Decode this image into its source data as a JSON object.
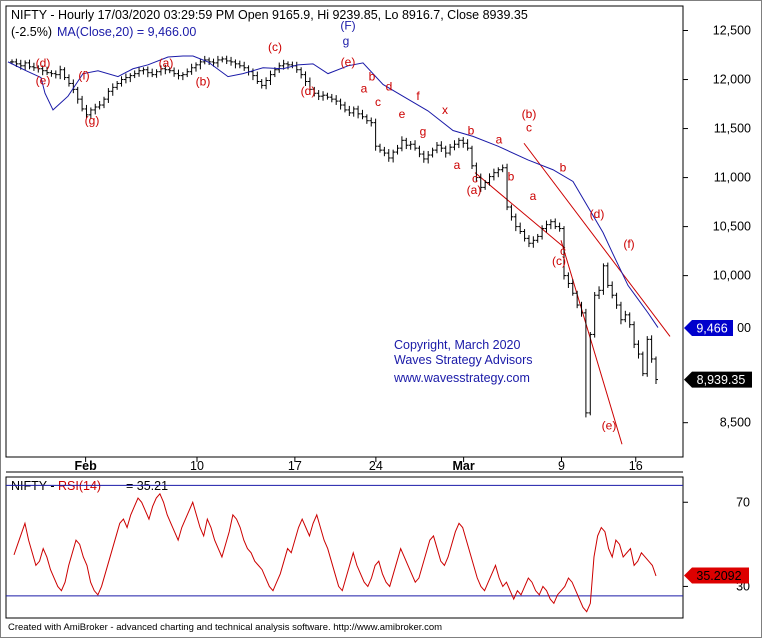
{
  "header": {
    "main_title": "NIFTY - Hourly 17/03/2020 03:29:59 PM Open 9165.9, Hi 9239.85, Lo 8916.7, Close 8939.35",
    "change_text": "(-2.5%)",
    "ma_text": "MA(Close,20) = 9,466.00"
  },
  "copyright": {
    "line1": "Copyright, March 2020",
    "line2": "Waves Strategy Advisors",
    "line3": "www.wavesstrategy.com"
  },
  "footer": {
    "text": "Created with AmiBroker - advanced charting and technical analysis software. http://www.amibroker.com"
  },
  "colors": {
    "price_bars": "#000000",
    "ma_line": "#1a1aa8",
    "wave_labels": "#cc0000",
    "wave_labels_primary": "#1a1aa8",
    "trend_lines": "#cc0000",
    "rsi_line": "#cc0000",
    "rsi_levels": "#1a1aa8",
    "ma_tag": "#0000cc",
    "close_tag": "#000000",
    "rsi_tag": "#dd0000"
  },
  "chart_data": [
    {
      "type": "ohlc",
      "title": "NIFTY - Hourly",
      "ylim": [
        8150,
        12750
      ],
      "y_ticks": [
        8500,
        10000,
        10500,
        11000,
        11500,
        12000,
        12500
      ],
      "y_tick_labels": [
        "8,500",
        "10,000",
        "10,500",
        "11,000",
        "11,500",
        "12,000",
        "12,500"
      ],
      "x_tick_labels": [
        "Feb",
        "10",
        "17",
        "24",
        "Mar",
        "9",
        "16"
      ],
      "last_close": 8939.35,
      "last_close_label": "8,939.35",
      "ma_period": 20,
      "ma_value": 9466.0,
      "ma_value_label": "9,466",
      "series": [
        {
          "name": "NIFTY",
          "close": [
            12180,
            12160,
            12140,
            12170,
            12130,
            12120,
            12110,
            12090,
            12070,
            12060,
            12050,
            12100,
            12020,
            11960,
            11900,
            11800,
            11700,
            11640,
            11690,
            11720,
            11740,
            11800,
            11880,
            11920,
            11960,
            12000,
            12020,
            12040,
            12060,
            12090,
            12100,
            12070,
            12050,
            12080,
            12110,
            12100,
            12090,
            12060,
            12040,
            12050,
            12080,
            12120,
            12150,
            12180,
            12200,
            12180,
            12170,
            12200,
            12210,
            12190,
            12180,
            12160,
            12140,
            12120,
            12080,
            12040,
            11980,
            11940,
            11990,
            12050,
            12100,
            12140,
            12160,
            12150,
            12140,
            12100,
            12050,
            11980,
            11900,
            11860,
            11830,
            11840,
            11820,
            11800,
            11780,
            11740,
            11690,
            11660,
            11700,
            11650,
            11620,
            11580,
            11560,
            11320,
            11280,
            11250,
            11200,
            11260,
            11300,
            11380,
            11330,
            11340,
            11300,
            11240,
            11190,
            11230,
            11280,
            11330,
            11300,
            11250,
            11310,
            11340,
            11380,
            11350,
            11300,
            11120,
            11000,
            10900,
            10950,
            11010,
            11050,
            11080,
            11100,
            10700,
            10600,
            10500,
            10450,
            10380,
            10330,
            10360,
            10400,
            10480,
            10520,
            10550,
            10500,
            10480,
            10000,
            9920,
            9820,
            9700,
            9620,
            8600,
            9400,
            9800,
            9850,
            10100,
            9900,
            9800,
            9700,
            9550,
            9600,
            9500,
            9300,
            9200,
            9000,
            9350,
            9150,
            8940
          ]
        },
        {
          "name": "MA(Close,20)",
          "points": [
            [
              0,
              12180
            ],
            [
              18,
              12090
            ],
            [
              33,
              12020
            ],
            [
              37,
              11860
            ],
            [
              45,
              11690
            ],
            [
              60,
              11830
            ],
            [
              75,
              12060
            ],
            [
              90,
              12090
            ],
            [
              110,
              12030
            ],
            [
              125,
              12110
            ],
            [
              140,
              12150
            ],
            [
              160,
              12230
            ],
            [
              175,
              12240
            ],
            [
              185,
              12240
            ],
            [
              200,
              12180
            ],
            [
              220,
              12030
            ],
            [
              235,
              12060
            ],
            [
              255,
              12120
            ],
            [
              275,
              12110
            ],
            [
              290,
              12150
            ],
            [
              305,
              12160
            ],
            [
              320,
              12060
            ],
            [
              340,
              12140
            ],
            [
              355,
              12170
            ],
            [
              375,
              11950
            ],
            [
              400,
              11800
            ],
            [
              420,
              11680
            ],
            [
              445,
              11480
            ],
            [
              465,
              11420
            ],
            [
              490,
              11320
            ],
            [
              520,
              11180
            ],
            [
              545,
              11080
            ],
            [
              565,
              10960
            ],
            [
              580,
              10700
            ],
            [
              595,
              10440
            ],
            [
              605,
              10220
            ],
            [
              620,
              9900
            ],
            [
              640,
              9620
            ],
            [
              650,
              9470
            ]
          ]
        }
      ],
      "wave_labels": [
        {
          "text": "(d)",
          "x": 35,
          "y": 12130
        },
        {
          "text": "(e)",
          "x": 35,
          "y": 11950
        },
        {
          "text": "(f)",
          "x": 76,
          "y": 12000
        },
        {
          "text": "(g)",
          "x": 84,
          "y": 11540
        },
        {
          "text": "(a)",
          "x": 158,
          "y": 12130
        },
        {
          "text": "(b)",
          "x": 195,
          "y": 11940
        },
        {
          "text": "(c)",
          "x": 267,
          "y": 12290
        },
        {
          "text": "(d)",
          "x": 300,
          "y": 11840
        },
        {
          "text": "(F)",
          "x": 340,
          "y": 12510,
          "primary": true
        },
        {
          "text": "g",
          "x": 338,
          "y": 12350,
          "primary": true
        },
        {
          "text": "(e)",
          "x": 340,
          "y": 12140
        },
        {
          "text": "b",
          "x": 364,
          "y": 11990
        },
        {
          "text": "a",
          "x": 356,
          "y": 11870
        },
        {
          "text": "d",
          "x": 381,
          "y": 11890
        },
        {
          "text": "c",
          "x": 370,
          "y": 11730
        },
        {
          "text": "f",
          "x": 410,
          "y": 11790
        },
        {
          "text": "e",
          "x": 394,
          "y": 11610
        },
        {
          "text": "x",
          "x": 437,
          "y": 11650
        },
        {
          "text": "g",
          "x": 415,
          "y": 11430
        },
        {
          "text": "b",
          "x": 463,
          "y": 11440
        },
        {
          "text": "a",
          "x": 491,
          "y": 11350
        },
        {
          "text": "a",
          "x": 449,
          "y": 11090
        },
        {
          "text": "c",
          "x": 467,
          "y": 10950
        },
        {
          "text": "(a)",
          "x": 466,
          "y": 10830
        },
        {
          "text": "b",
          "x": 503,
          "y": 10970
        },
        {
          "text": "(b)",
          "x": 521,
          "y": 11610
        },
        {
          "text": "c",
          "x": 521,
          "y": 11470
        },
        {
          "text": "b",
          "x": 555,
          "y": 11060
        },
        {
          "text": "a",
          "x": 525,
          "y": 10770
        },
        {
          "text": "(d)",
          "x": 589,
          "y": 10590
        },
        {
          "text": "c",
          "x": 555,
          "y": 10210
        },
        {
          "text": "(c)",
          "x": 551,
          "y": 10110
        },
        {
          "text": "(f)",
          "x": 621,
          "y": 10280
        },
        {
          "text": "(e)",
          "x": 601,
          "y": 8430
        }
      ],
      "trend_lines": [
        [
          [
            467,
            11050
          ],
          [
            557,
            10280
          ]
        ],
        [
          [
            516,
            11350
          ],
          [
            662,
            9380
          ]
        ],
        [
          [
            553,
            10360
          ],
          [
            614,
            8280
          ]
        ]
      ]
    },
    {
      "type": "line",
      "title": "NIFTY - RSI(14) = 35.21",
      "ylim": [
        15,
        82
      ],
      "y_ticks": [
        30,
        70
      ],
      "y_tick_labels": [
        "30",
        "70"
      ],
      "level_lines": [
        25.5,
        78
      ],
      "last_value": 35.21,
      "last_value_label": "35.2092",
      "series": [
        {
          "name": "RSI(14)",
          "values": [
            45,
            50,
            55,
            60,
            52,
            46,
            40,
            42,
            48,
            44,
            38,
            34,
            30,
            28,
            32,
            40,
            46,
            52,
            50,
            44,
            40,
            32,
            28,
            26,
            30,
            36,
            42,
            48,
            54,
            60,
            62,
            58,
            64,
            68,
            72,
            70,
            66,
            62,
            68,
            72,
            74,
            70,
            64,
            60,
            56,
            52,
            58,
            62,
            66,
            70,
            64,
            58,
            54,
            62,
            58,
            52,
            48,
            44,
            50,
            56,
            64,
            62,
            58,
            52,
            48,
            46,
            42,
            40,
            38,
            34,
            30,
            28,
            32,
            36,
            42,
            48,
            46,
            52,
            58,
            62,
            58,
            54,
            60,
            64,
            58,
            52,
            48,
            42,
            36,
            30,
            28,
            34,
            40,
            46,
            40,
            36,
            32,
            30,
            34,
            40,
            42,
            36,
            32,
            30,
            36,
            42,
            48,
            44,
            40,
            36,
            32,
            34,
            40,
            46,
            52,
            54,
            48,
            42,
            40,
            44,
            50,
            56,
            60,
            58,
            52,
            46,
            40,
            34,
            30,
            28,
            32,
            36,
            40,
            34,
            30,
            32,
            28,
            24,
            28,
            26,
            30,
            34,
            32,
            28,
            26,
            30,
            28,
            24,
            22,
            26,
            28,
            30,
            34,
            32,
            28,
            24,
            20,
            18,
            22,
            44,
            54,
            58,
            56,
            48,
            44,
            52,
            50,
            44,
            46,
            48,
            40,
            42,
            46,
            44,
            42,
            40,
            35
          ]
        }
      ]
    }
  ]
}
